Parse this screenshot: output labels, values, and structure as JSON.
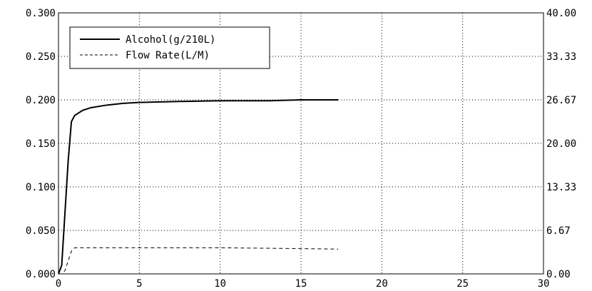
{
  "chart_data": {
    "type": "line",
    "title": "",
    "xlabel": "",
    "ylabel": "",
    "xlim": [
      0,
      30
    ],
    "ylim": [
      0,
      0.3
    ],
    "y2lim": [
      0,
      40
    ],
    "grid": true,
    "legend_position": "top-left",
    "x_ticks": [
      "0",
      "5",
      "10",
      "15",
      "20",
      "25",
      "30"
    ],
    "x_tick_values": [
      0,
      5,
      10,
      15,
      20,
      25,
      30
    ],
    "y_ticks": [
      "0.000",
      "0.050",
      "0.100",
      "0.150",
      "0.200",
      "0.250",
      "0.300"
    ],
    "y_tick_values": [
      0,
      0.05,
      0.1,
      0.15,
      0.2,
      0.25,
      0.3
    ],
    "y2_ticks": [
      "0.00",
      "6.67",
      "13.33",
      "20.00",
      "26.67",
      "33.33",
      "40.00"
    ],
    "y2_tick_values": [
      0,
      6.67,
      13.33,
      20,
      26.67,
      33.33,
      40
    ],
    "series": [
      {
        "name": "Alcohol(g/210L)",
        "axis": "left",
        "style": "solid",
        "color": "#000000",
        "x": [
          0,
          0.2,
          0.4,
          0.6,
          0.8,
          1.0,
          1.5,
          2,
          3,
          4,
          5,
          7,
          10,
          13,
          15,
          17.3
        ],
        "y": [
          0.0,
          0.01,
          0.07,
          0.13,
          0.175,
          0.182,
          0.188,
          0.191,
          0.194,
          0.196,
          0.197,
          0.198,
          0.199,
          0.199,
          0.2,
          0.2
        ]
      },
      {
        "name": "Flow Rate(L/M)",
        "axis": "right",
        "style": "dashed",
        "color": "#000000",
        "x": [
          0,
          0.2,
          0.4,
          0.6,
          0.8,
          1.0,
          3,
          6,
          10,
          14,
          17.3
        ],
        "y": [
          0.0,
          0.0,
          0.5,
          2.0,
          3.5,
          4.0,
          4.0,
          4.0,
          4.0,
          3.9,
          3.8
        ]
      }
    ]
  }
}
